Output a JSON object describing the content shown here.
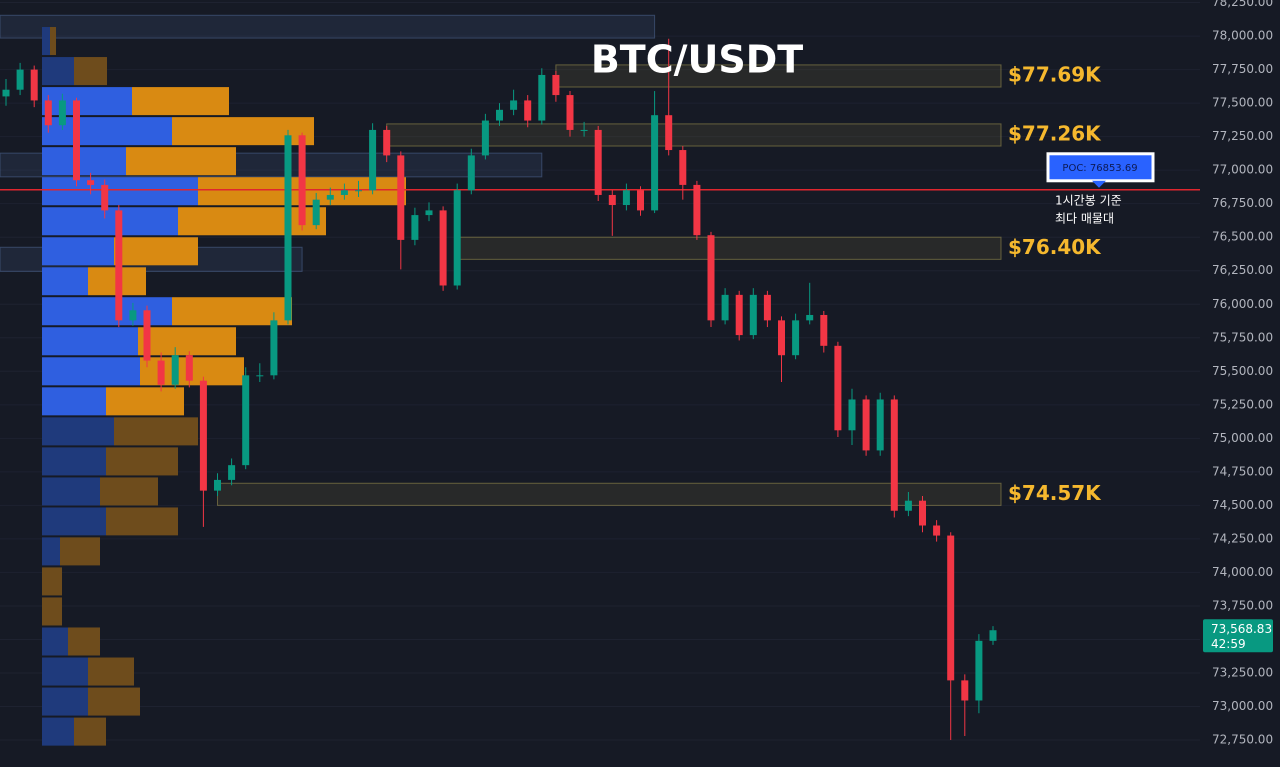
{
  "chart_data": {
    "type": "candlestick",
    "title": "BTC/USDT",
    "up_color": "#089981",
    "down_color": "#f23645",
    "open": [
      77550,
      77600,
      77750,
      77520,
      77335,
      77520,
      76925,
      76890,
      76700,
      75880,
      75955,
      75580,
      75400,
      75620,
      75430,
      74610,
      74690,
      74800,
      75470,
      75470,
      75880,
      77260,
      76590,
      76780,
      76815,
      76850,
      76850,
      77300,
      77110,
      76480,
      76665,
      76700,
      76140,
      76850,
      77110,
      77370,
      77450,
      77520,
      77370,
      77710,
      77560,
      77300,
      77300,
      76815,
      76740,
      76850,
      76700,
      77410,
      77150,
      76890,
      76515,
      75880,
      76070,
      75770,
      76070,
      75880,
      75620,
      75880,
      75920,
      75690,
      75060,
      75290,
      74910,
      75290,
      74460,
      74535,
      74350,
      74275,
      73195,
      73045,
      73490
    ],
    "high": [
      77680,
      77800,
      77780,
      77560,
      77570,
      77540,
      76980,
      76930,
      76740,
      76010,
      75990,
      75640,
      75680,
      75650,
      75460,
      74740,
      74850,
      75530,
      75560,
      75940,
      77300,
      77280,
      76830,
      76870,
      76900,
      76920,
      77350,
      77330,
      77140,
      76720,
      76760,
      76730,
      76900,
      77160,
      77420,
      77500,
      77600,
      77560,
      77760,
      77740,
      77590,
      77360,
      77330,
      76850,
      76900,
      76880,
      77590,
      77980,
      77180,
      76920,
      76540,
      76120,
      76100,
      76120,
      76100,
      75910,
      75930,
      76160,
      75950,
      75720,
      75370,
      75320,
      75340,
      75320,
      74600,
      74570,
      74390,
      74300,
      73240,
      73540,
      73600
    ],
    "low": [
      77480,
      77560,
      77470,
      77280,
      77300,
      76880,
      76820,
      76640,
      75830,
      75840,
      75530,
      75350,
      75370,
      75380,
      74340,
      74570,
      74650,
      74770,
      75420,
      75440,
      75850,
      76550,
      76560,
      76740,
      76780,
      76800,
      76820,
      77060,
      76260,
      76440,
      76620,
      76100,
      76110,
      76820,
      77080,
      77330,
      77410,
      77320,
      77340,
      77510,
      77250,
      77250,
      76770,
      76510,
      76700,
      76660,
      76680,
      77110,
      76780,
      76480,
      75830,
      75850,
      75730,
      75740,
      75830,
      75420,
      75590,
      75850,
      75640,
      75010,
      74950,
      74870,
      74870,
      74410,
      74420,
      74300,
      74230,
      72750,
      72780,
      72950,
      73460
    ],
    "close": [
      77600,
      77750,
      77520,
      77335,
      77520,
      76925,
      76890,
      76700,
      75880,
      75955,
      75580,
      75400,
      75620,
      75430,
      74610,
      74690,
      74800,
      75470,
      75470,
      75880,
      77260,
      76590,
      76780,
      76815,
      76850,
      76850,
      77300,
      77110,
      76480,
      76665,
      76700,
      76140,
      76850,
      77110,
      77370,
      77450,
      77520,
      77370,
      77710,
      77560,
      77300,
      77300,
      76815,
      76740,
      76850,
      76700,
      77410,
      77150,
      76890,
      76515,
      75880,
      76070,
      75770,
      76070,
      75880,
      75620,
      75880,
      75920,
      75690,
      75060,
      75290,
      74910,
      75290,
      74460,
      74535,
      74350,
      74275,
      73195,
      73045,
      73490,
      73568.83
    ],
    "ylim": [
      72549,
      78269
    ],
    "yticks": [
      {
        "value": 72750,
        "label": "72,750.00"
      },
      {
        "value": 73000,
        "label": "73,000.00"
      },
      {
        "value": 73250,
        "label": "73,250.00"
      },
      {
        "value": 73500,
        "label": "73,500.00"
      },
      {
        "value": 73750,
        "label": "73,750.00"
      },
      {
        "value": 74000,
        "label": "74,000.00"
      },
      {
        "value": 74250,
        "label": "74,250.00"
      },
      {
        "value": 74500,
        "label": "74,500.00"
      },
      {
        "value": 74750,
        "label": "74,750.00"
      },
      {
        "value": 75000,
        "label": "75,000.00"
      },
      {
        "value": 75250,
        "label": "75,250.00"
      },
      {
        "value": 75500,
        "label": "75,500.00"
      },
      {
        "value": 75750,
        "label": "75,750.00"
      },
      {
        "value": 76000,
        "label": "76,000.00"
      },
      {
        "value": 76250,
        "label": "76,250.00"
      },
      {
        "value": 76500,
        "label": "76,500.00"
      },
      {
        "value": 76750,
        "label": "76,750.00"
      },
      {
        "value": 77000,
        "label": "77,000.00"
      },
      {
        "value": 77250,
        "label": "77,250.00"
      },
      {
        "value": 77500,
        "label": "77,500.00"
      },
      {
        "value": 77750,
        "label": "77,750.00"
      },
      {
        "value": 78000,
        "label": "78,000.00"
      },
      {
        "value": 78250,
        "label": "78,250.00"
      }
    ],
    "grid": true,
    "volume_profile": {
      "bins": [
        78075,
        77851,
        77627,
        77403,
        77179,
        76955,
        76731,
        76507,
        76283,
        76060,
        75836,
        75612,
        75388,
        75164,
        74940,
        74716,
        74492,
        74269,
        74045,
        73821,
        73597,
        73373,
        73149,
        72925,
        72701
      ],
      "buy": [
        8,
        32,
        90,
        130,
        84,
        156,
        136,
        72,
        46,
        130,
        96,
        98,
        64,
        72,
        64,
        58,
        64,
        18,
        0,
        0,
        26,
        46,
        46,
        32
      ],
      "sell": [
        6,
        33,
        97,
        142,
        110,
        208,
        148,
        84,
        58,
        120,
        98,
        104,
        78,
        84,
        72,
        58,
        72,
        40,
        20,
        20,
        32,
        46,
        52,
        32
      ],
      "value_area": [
        75164,
        77627
      ],
      "buy_color": "#2f5fe0",
      "sell_color": "#d98a12",
      "dim_buy_color": "#1f3a7c",
      "dim_sell_color": "#6e4c1c"
    },
    "zones": [
      {
        "low": 77985,
        "high": 78155,
        "from": -1,
        "to": 46
      },
      {
        "low": 77620,
        "high": 77785,
        "from": 39,
        "to": 71,
        "label": "$77.69K"
      },
      {
        "low": 77180,
        "high": 77345,
        "from": 27,
        "to": 71,
        "label": "$77.26K"
      },
      {
        "low": 76950,
        "high": 77127,
        "from": -1,
        "to": 38
      },
      {
        "low": 76335,
        "high": 76500,
        "from": 32,
        "to": 71,
        "label": "$76.40K"
      },
      {
        "low": 76245,
        "high": 76425,
        "from": -1,
        "to": 21
      },
      {
        "low": 74500,
        "high": 74665,
        "from": 15,
        "to": 71,
        "label": "$74.57K"
      }
    ],
    "poc": {
      "value": 76853.69,
      "label": "POC: 76853.69",
      "note": [
        "1시간봉 기준",
        "최다 매물대"
      ]
    },
    "last_price": {
      "value": 73568.83,
      "label": "73,568.83",
      "countdown": "42:59"
    }
  }
}
